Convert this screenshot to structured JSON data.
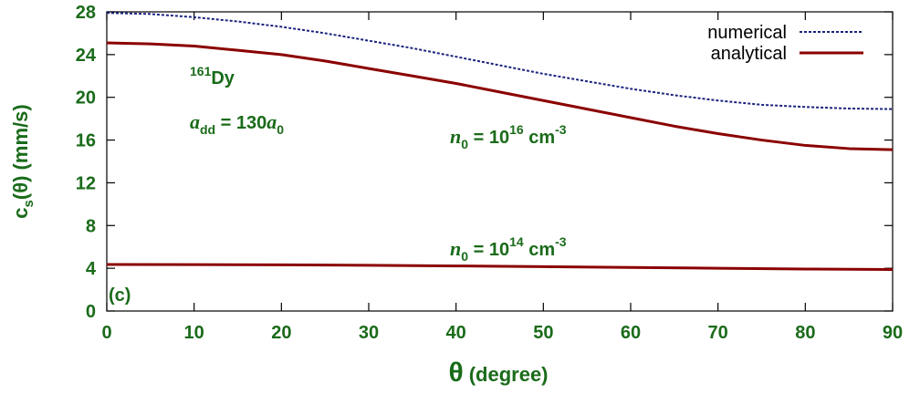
{
  "chart_data": {
    "type": "line",
    "xlabel": {
      "symbol": "θ",
      "unit": "(degree)"
    },
    "ylabel": {
      "main": "c",
      "sub": "s",
      "rest": "(θ) (mm/s)"
    },
    "xlim": [
      0,
      90
    ],
    "ylim": [
      0,
      28
    ],
    "xticks": [
      0,
      10,
      20,
      30,
      40,
      50,
      60,
      70,
      80,
      90
    ],
    "yticks": [
      0,
      4,
      8,
      12,
      16,
      20,
      24,
      28
    ],
    "grid": false,
    "legend_position": "top-right",
    "panel_label": "(c)",
    "annotations": {
      "isotope": {
        "sup": "161",
        "text": "Dy"
      },
      "add": {
        "a": "a",
        "sub": "dd",
        "mid": " = 130",
        "a0": "a",
        "sub0": "0"
      },
      "n16": {
        "n": "n",
        "sub": "0",
        "mid": " = 10",
        "exp": "16",
        "unit": " cm",
        "unitexp": "-3"
      },
      "n14": {
        "n": "n",
        "sub": "0",
        "mid": " = 10",
        "exp": "14",
        "unit": " cm",
        "unitexp": "-3"
      }
    },
    "series": [
      {
        "name": "numerical",
        "style": "dashed",
        "color": "#1a237e",
        "x": [
          0,
          5,
          10,
          15,
          20,
          25,
          30,
          35,
          40,
          45,
          50,
          55,
          60,
          65,
          70,
          75,
          80,
          85,
          90
        ],
        "y": [
          27.9,
          27.8,
          27.5,
          27.1,
          26.6,
          26.0,
          25.3,
          24.6,
          23.8,
          23.0,
          22.2,
          21.5,
          20.8,
          20.2,
          19.7,
          19.3,
          19.1,
          18.95,
          18.9
        ]
      },
      {
        "name": "analytical",
        "style": "solid",
        "color": "#8b0000",
        "x": [
          0,
          5,
          10,
          15,
          20,
          25,
          30,
          35,
          40,
          45,
          50,
          55,
          60,
          65,
          70,
          75,
          80,
          85,
          90
        ],
        "y": [
          25.1,
          25.0,
          24.8,
          24.4,
          24.0,
          23.4,
          22.7,
          22.0,
          21.3,
          20.5,
          19.7,
          18.9,
          18.1,
          17.3,
          16.6,
          16.0,
          15.5,
          15.2,
          15.1
        ]
      },
      {
        "name": "",
        "style": "solid",
        "color": "#8b0000",
        "x": [
          0,
          10,
          20,
          30,
          40,
          50,
          60,
          70,
          80,
          90
        ],
        "y": [
          4.35,
          4.34,
          4.32,
          4.28,
          4.22,
          4.15,
          4.08,
          4.0,
          3.93,
          3.88
        ]
      }
    ]
  }
}
